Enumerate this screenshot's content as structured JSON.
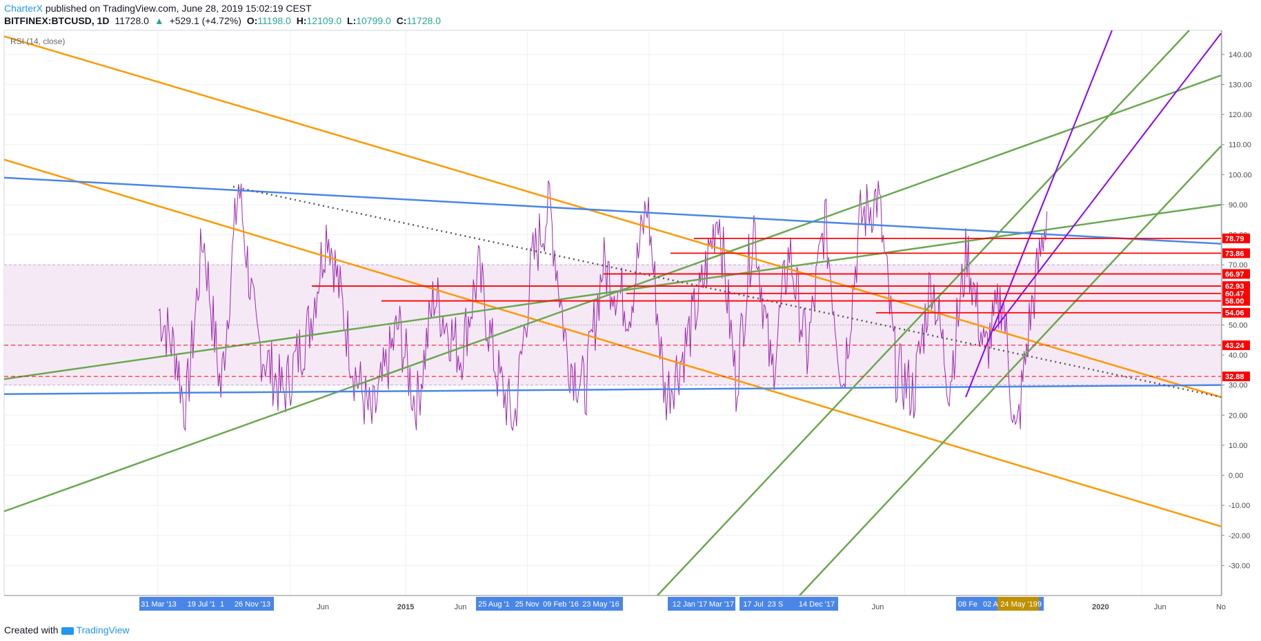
{
  "header": {
    "author": "CharterX",
    "published": " published on TradingView.com, June 28, 2019 15:02:19 CEST",
    "symbol": "BITFINEX:BTCUSD, 1D",
    "price": "11728.0",
    "change_arrow": "▲",
    "change": "+529.1 (+4.72%)",
    "o_label": "O:",
    "o_value": "11198.0",
    "h_label": "H:",
    "h_value": "12109.0",
    "l_label": "L:",
    "l_value": "10799.0",
    "c_label": "C:",
    "c_value": "11728.0"
  },
  "footer": {
    "created_with": "Created with",
    "brand": "TradingView"
  },
  "colors": {
    "rsi": "#9c27b0",
    "band_fill": "#f3e5f5",
    "band_border": "#c8a2d8",
    "orange": "#ff9800",
    "green": "#6aa84f",
    "blue": "#4a86e8",
    "red": "#ff0000",
    "violet": "#8b00ff",
    "date_tag": "#4a86e8",
    "date_tag_active": "#bf9000",
    "grid": "#eef0f3",
    "axis_text": "#4a4a4a"
  },
  "chart_data": {
    "type": "line",
    "indicator": "RSI (14, close)",
    "ylim": [
      -40,
      148
    ],
    "y_ticks": [
      140,
      130,
      120,
      110,
      100,
      90,
      80,
      70,
      60,
      50,
      40,
      30,
      20,
      10,
      0,
      -10,
      -20,
      -30
    ],
    "y_tick_labels": [
      "140.00",
      "130.00",
      "120.00",
      "110.00",
      "100.00",
      "90.00",
      "80.00",
      "70.00",
      "60.00",
      "50.00",
      "40.00",
      "30.00",
      "20.00",
      "10.00",
      "0.00",
      "-10.00",
      "-20.00",
      "-30.00"
    ],
    "x_labels": [
      "Jun",
      "2015",
      "Jun",
      "Jun",
      "2020",
      "Jun",
      "No"
    ],
    "date_tags": [
      "31 Mar '13",
      "19 Jul '1",
      "1",
      "26 Nov '13",
      "25 Aug '1",
      "25 Nov",
      "09 Feb '16",
      "23 May '16",
      "12 Jan '17",
      "Mar '17",
      "17 Jul",
      "23 S",
      "14 Dec '17",
      "08 Fe",
      "02 A",
      "24 May '19",
      "9"
    ],
    "active_date_tag": "24 May '19",
    "band": {
      "upper": 70,
      "lower": 30,
      "middle": 50
    },
    "levels": [
      {
        "value": 78.79,
        "label": "78.79"
      },
      {
        "value": 73.86,
        "label": "73.86"
      },
      {
        "value": 66.97,
        "label": "66.97"
      },
      {
        "value": 62.93,
        "label": "62.93"
      },
      {
        "value": 60.47,
        "label": "60.47"
      },
      {
        "value": 58.0,
        "label": "58.00"
      },
      {
        "value": 54.06,
        "label": "54.06"
      },
      {
        "value": 43.24,
        "label": "43.24",
        "dashed": true
      },
      {
        "value": 32.88,
        "label": "32.88",
        "dashed": true
      }
    ],
    "rsi_anchor_points": [
      {
        "t": 0.0,
        "v": 55
      },
      {
        "t": 0.02,
        "v": 40
      },
      {
        "t": 0.03,
        "v": 20
      },
      {
        "t": 0.05,
        "v": 80
      },
      {
        "t": 0.07,
        "v": 28
      },
      {
        "t": 0.09,
        "v": 97
      },
      {
        "t": 0.11,
        "v": 45
      },
      {
        "t": 0.14,
        "v": 27
      },
      {
        "t": 0.17,
        "v": 50
      },
      {
        "t": 0.19,
        "v": 83
      },
      {
        "t": 0.22,
        "v": 35
      },
      {
        "t": 0.24,
        "v": 18
      },
      {
        "t": 0.27,
        "v": 50
      },
      {
        "t": 0.29,
        "v": 22
      },
      {
        "t": 0.31,
        "v": 60
      },
      {
        "t": 0.34,
        "v": 40
      },
      {
        "t": 0.36,
        "v": 68
      },
      {
        "t": 0.38,
        "v": 35
      },
      {
        "t": 0.4,
        "v": 17
      },
      {
        "t": 0.42,
        "v": 70
      },
      {
        "t": 0.44,
        "v": 90
      },
      {
        "t": 0.46,
        "v": 40
      },
      {
        "t": 0.48,
        "v": 28
      },
      {
        "t": 0.5,
        "v": 70
      },
      {
        "t": 0.53,
        "v": 55
      },
      {
        "t": 0.55,
        "v": 91
      },
      {
        "t": 0.57,
        "v": 26
      },
      {
        "t": 0.59,
        "v": 40
      },
      {
        "t": 0.61,
        "v": 60
      },
      {
        "t": 0.63,
        "v": 89
      },
      {
        "t": 0.65,
        "v": 30
      },
      {
        "t": 0.67,
        "v": 85
      },
      {
        "t": 0.69,
        "v": 33
      },
      {
        "t": 0.71,
        "v": 75
      },
      {
        "t": 0.73,
        "v": 40
      },
      {
        "t": 0.75,
        "v": 85
      },
      {
        "t": 0.77,
        "v": 30
      },
      {
        "t": 0.79,
        "v": 85
      },
      {
        "t": 0.81,
        "v": 93
      },
      {
        "t": 0.83,
        "v": 35
      },
      {
        "t": 0.85,
        "v": 27
      },
      {
        "t": 0.87,
        "v": 66
      },
      {
        "t": 0.89,
        "v": 30
      },
      {
        "t": 0.91,
        "v": 75
      },
      {
        "t": 0.93,
        "v": 40
      },
      {
        "t": 0.95,
        "v": 60
      },
      {
        "t": 0.965,
        "v": 10
      },
      {
        "t": 0.98,
        "v": 50
      },
      {
        "t": 1.0,
        "v": 88
      }
    ],
    "trendlines": [
      {
        "name": "orange-upper",
        "color": "orange",
        "from": {
          "t": 0.0,
          "v": 146
        },
        "to": {
          "t": 1.0,
          "v": 26
        }
      },
      {
        "name": "orange-lower",
        "color": "orange",
        "from": {
          "t": 0.0,
          "v": 105
        },
        "to": {
          "t": 1.0,
          "v": -17
        }
      },
      {
        "name": "green-lower",
        "color": "green",
        "from": {
          "t": 0.0,
          "v": -12
        },
        "to": {
          "t": 1.0,
          "v": 133
        }
      },
      {
        "name": "green-mid",
        "color": "green",
        "from": {
          "t": 0.0,
          "v": 32
        },
        "to": {
          "t": 1.0,
          "v": 90
        }
      },
      {
        "name": "blue-top",
        "color": "blue",
        "from": {
          "t": 0.0,
          "v": 99
        },
        "to": {
          "t": 1.0,
          "v": 77
        }
      },
      {
        "name": "blue-bottom",
        "color": "blue",
        "from": {
          "t": 0.0,
          "v": 27
        },
        "to": {
          "t": 1.0,
          "v": 30
        }
      }
    ]
  }
}
